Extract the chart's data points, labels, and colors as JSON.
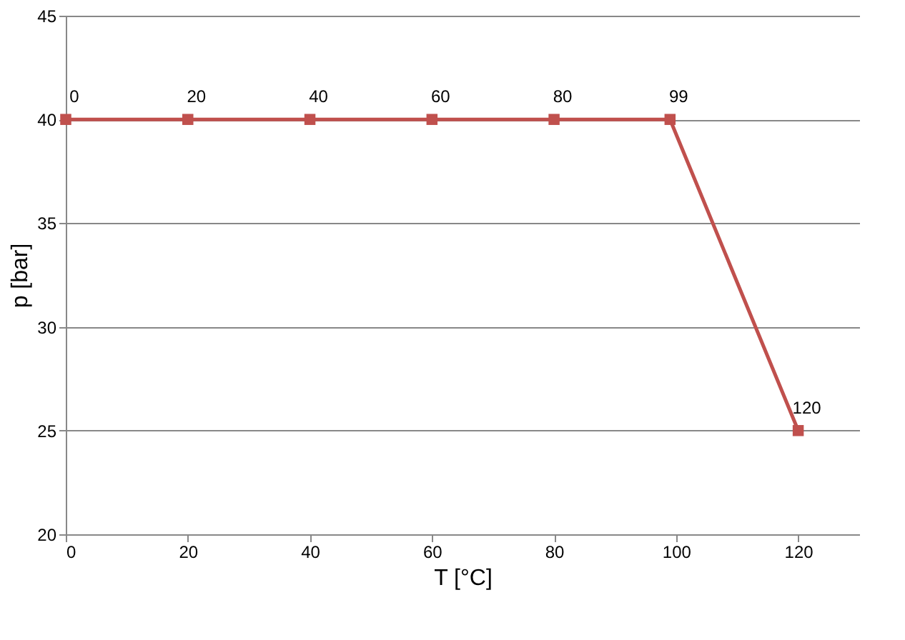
{
  "chart_data": {
    "type": "line",
    "xlabel": "T [°C]",
    "ylabel": "p [bar]",
    "x": [
      0,
      20,
      40,
      60,
      80,
      99,
      120
    ],
    "series": [
      {
        "color": "#c0504d",
        "values": [
          40,
          40,
          40,
          40,
          40,
          40,
          25
        ]
      }
    ],
    "annotations": [
      {
        "text": "0",
        "x": 0,
        "y": 40
      },
      {
        "text": "20",
        "x": 20,
        "y": 40
      },
      {
        "text": "40",
        "x": 40,
        "y": 40
      },
      {
        "text": "60",
        "x": 60,
        "y": 40
      },
      {
        "text": "80",
        "x": 80,
        "y": 40
      },
      {
        "text": "99",
        "x": 99,
        "y": 40
      },
      {
        "text": "120",
        "x": 120,
        "y": 25
      }
    ],
    "xlim": [
      0,
      130
    ],
    "xticks": [
      0,
      20,
      40,
      60,
      80,
      100,
      120
    ],
    "ylim": [
      20,
      45
    ],
    "yticks": [
      20,
      25,
      30,
      35,
      40,
      45
    ],
    "grid": "y",
    "marker": "square",
    "line_style": "solid"
  }
}
